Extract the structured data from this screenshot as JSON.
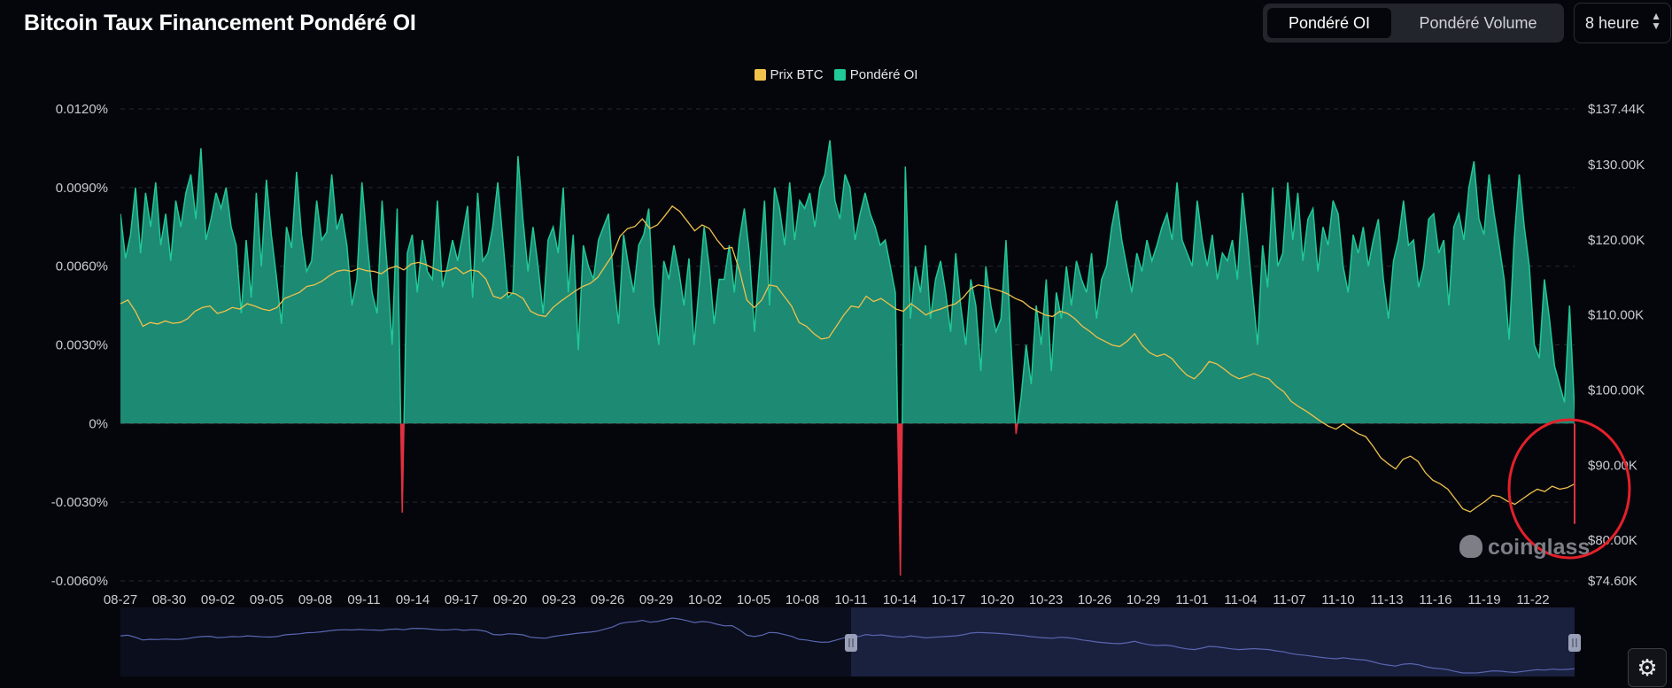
{
  "header": {
    "title": "Bitcoin Taux Financement Pondéré OI",
    "toggle_oi": "Pondéré OI",
    "toggle_volume": "Pondéré Volume",
    "interval": "8 heure"
  },
  "watermark": "coinglass",
  "icons": {
    "settings": "gear-icon",
    "interval_chevron": "chevron-updown-icon"
  },
  "colors": {
    "price": "#f0c14b",
    "funding_positive": "#20c997",
    "funding_fill": "#1d8a73",
    "funding_negative": "#e0313f",
    "annotation": "#e4202a",
    "navigator": "#3b4372"
  },
  "chart_data": {
    "type": "area",
    "legend": [
      "Prix BTC",
      "Pondéré OI"
    ],
    "left_ticks": [
      "0.0120%",
      "0.0090%",
      "0.0060%",
      "0.0030%",
      "0%",
      "-0.0030%",
      "-0.0060%"
    ],
    "right_ticks": [
      "$137.44K",
      "$130.00K",
      "$120.00K",
      "$110.00K",
      "$100.00K",
      "$90.00K",
      "$80.00K",
      "$74.60K"
    ],
    "x_ticks": [
      "08-27",
      "08-30",
      "09-02",
      "09-05",
      "09-08",
      "09-11",
      "09-14",
      "09-17",
      "09-20",
      "09-23",
      "09-26",
      "09-29",
      "10-02",
      "10-05",
      "10-08",
      "10-11",
      "10-14",
      "10-17",
      "10-20",
      "10-23",
      "10-26",
      "10-29",
      "11-01",
      "11-04",
      "11-07",
      "11-10",
      "11-13",
      "11-16",
      "11-19",
      "11-22"
    ],
    "ylim_left": [
      -0.006,
      0.012
    ],
    "ylim_right": [
      74600,
      137440
    ],
    "series": [
      {
        "name": "Pondéré OI",
        "unit": "%",
        "values": [
          0.008,
          0.0063,
          0.0072,
          0.009,
          0.0065,
          0.0088,
          0.0075,
          0.0092,
          0.0068,
          0.008,
          0.0062,
          0.0085,
          0.0075,
          0.0088,
          0.0095,
          0.0078,
          0.0105,
          0.007,
          0.0078,
          0.0088,
          0.0082,
          0.009,
          0.0075,
          0.0068,
          0.0042,
          0.007,
          0.0048,
          0.0088,
          0.006,
          0.0093,
          0.0072,
          0.0056,
          0.0038,
          0.0075,
          0.0067,
          0.0096,
          0.0072,
          0.0058,
          0.0062,
          0.0085,
          0.007,
          0.0073,
          0.0095,
          0.0074,
          0.008,
          0.0068,
          0.0045,
          0.0055,
          0.0092,
          0.007,
          0.005,
          0.0042,
          0.0085,
          0.006,
          0.003,
          0.0082,
          -0.0034,
          0.0065,
          0.0072,
          0.005,
          0.007,
          0.0058,
          0.0055,
          0.0085,
          0.0052,
          0.006,
          0.007,
          0.0062,
          0.0072,
          0.0083,
          0.0048,
          0.0088,
          0.0062,
          0.0065,
          0.0075,
          0.0092,
          0.007,
          0.0048,
          0.005,
          0.0102,
          0.0078,
          0.0058,
          0.0075,
          0.006,
          0.0042,
          0.007,
          0.0075,
          0.0065,
          0.009,
          0.005,
          0.0072,
          0.0028,
          0.0068,
          0.006,
          0.0055,
          0.007,
          0.0075,
          0.008,
          0.0055,
          0.0038,
          0.0072,
          0.006,
          0.005,
          0.0068,
          0.0072,
          0.0082,
          0.0045,
          0.003,
          0.0062,
          0.0055,
          0.0068,
          0.0058,
          0.0045,
          0.0063,
          0.003,
          0.0052,
          0.0075,
          0.006,
          0.0038,
          0.0055,
          0.0055,
          0.0068,
          0.005,
          0.007,
          0.0082,
          0.0065,
          0.0035,
          0.006,
          0.0085,
          0.0045,
          0.009,
          0.0082,
          0.0068,
          0.0092,
          0.007,
          0.0085,
          0.0082,
          0.0088,
          0.0075,
          0.009,
          0.0095,
          0.0108,
          0.0085,
          0.0078,
          0.0095,
          0.009,
          0.007,
          0.008,
          0.0088,
          0.008,
          0.0075,
          0.0068,
          0.007,
          0.006,
          0.005,
          -0.0058,
          0.0098,
          0.004,
          0.006,
          0.005,
          0.0068,
          0.004,
          0.0055,
          0.0062,
          0.005,
          0.0035,
          0.0065,
          0.0045,
          0.003,
          0.0055,
          0.0045,
          0.002,
          0.006,
          0.0045,
          0.0035,
          0.004,
          0.007,
          0.003,
          -0.0004,
          0.001,
          0.003,
          0.0015,
          0.0045,
          0.003,
          0.0055,
          0.002,
          0.005,
          0.004,
          0.006,
          0.0045,
          0.0062,
          0.0055,
          0.005,
          0.0065,
          0.004,
          0.0055,
          0.006,
          0.0075,
          0.0085,
          0.007,
          0.006,
          0.005,
          0.0065,
          0.0058,
          0.007,
          0.0062,
          0.0068,
          0.0075,
          0.008,
          0.007,
          0.0092,
          0.007,
          0.0065,
          0.006,
          0.0085,
          0.007,
          0.006,
          0.0072,
          0.0055,
          0.0065,
          0.0062,
          0.007,
          0.0055,
          0.0088,
          0.007,
          0.005,
          0.003,
          0.0068,
          0.0052,
          0.009,
          0.006,
          0.0065,
          0.0092,
          0.007,
          0.0088,
          0.0062,
          0.0078,
          0.0082,
          0.0058,
          0.0075,
          0.0068,
          0.0085,
          0.008,
          0.006,
          0.005,
          0.0072,
          0.0065,
          0.0075,
          0.006,
          0.007,
          0.0078,
          0.0055,
          0.004,
          0.0062,
          0.007,
          0.0085,
          0.0068,
          0.007,
          0.0052,
          0.006,
          0.0078,
          0.008,
          0.0065,
          0.007,
          0.0045,
          0.0075,
          0.008,
          0.007,
          0.009,
          0.01,
          0.0078,
          0.0072,
          0.0095,
          0.008,
          0.0068,
          0.0055,
          0.0032,
          0.007,
          0.0095,
          0.0075,
          0.006,
          0.003,
          0.0025,
          0.0055,
          0.004,
          0.0022,
          0.0015,
          0.0008,
          0.0045,
          0.0005
        ]
      },
      {
        "name": "Prix BTC",
        "unit": "USD",
        "values": [
          111500,
          112000,
          110500,
          108500,
          109000,
          108800,
          109200,
          108900,
          109000,
          109500,
          110500,
          111000,
          111200,
          110200,
          110500,
          111000,
          110800,
          111500,
          111200,
          110800,
          110600,
          111000,
          112200,
          112600,
          113000,
          113800,
          114000,
          114500,
          115200,
          115800,
          116000,
          115800,
          116200,
          115900,
          115800,
          115500,
          116200,
          116500,
          116000,
          116800,
          117000,
          116700,
          116200,
          115800,
          115900,
          116300,
          115500,
          116000,
          115800,
          114800,
          112500,
          112200,
          113000,
          112800,
          112200,
          110500,
          110000,
          109800,
          111000,
          111800,
          112500,
          113200,
          113800,
          114200,
          115000,
          116500,
          118000,
          120500,
          121500,
          121800,
          122800,
          121500,
          122000,
          123200,
          124500,
          123800,
          122500,
          121200,
          122000,
          121500,
          120000,
          118800,
          119000,
          116000,
          112000,
          111000,
          112000,
          114000,
          113800,
          112500,
          111200,
          109000,
          108500,
          107500,
          106800,
          107000,
          108500,
          110000,
          111200,
          111000,
          112500,
          111800,
          112200,
          111500,
          110800,
          110500,
          111500,
          110800,
          110000,
          110500,
          110800,
          111200,
          111500,
          112300,
          113500,
          114000,
          113800,
          113500,
          113200,
          112800,
          112200,
          111800,
          111000,
          110500,
          110000,
          109800,
          110500,
          110200,
          109500,
          108500,
          107800,
          107000,
          106500,
          106000,
          105800,
          106500,
          107500,
          106000,
          105000,
          104500,
          104800,
          104200,
          103000,
          102000,
          101500,
          102500,
          103800,
          103500,
          102800,
          102000,
          101500,
          101800,
          102200,
          101800,
          101500,
          100500,
          99800,
          98500,
          97800,
          97200,
          96500,
          95800,
          95200,
          94800,
          95500,
          94800,
          94200,
          93800,
          92500,
          91000,
          90200,
          89500,
          90800,
          91200,
          90500,
          89000,
          88000,
          87500,
          86800,
          85500,
          84200,
          83800,
          84500,
          85200,
          86000,
          85800,
          85200,
          84800,
          85500,
          86200,
          86800,
          86500,
          87200,
          86800,
          87000,
          87500
        ]
      }
    ]
  }
}
